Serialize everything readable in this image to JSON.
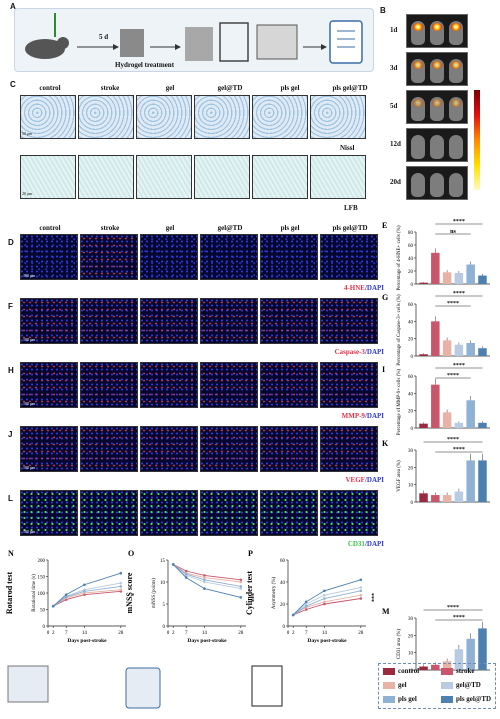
{
  "panel_letters": {
    "A": "A",
    "B": "B",
    "C": "C",
    "D": "D",
    "E": "E",
    "F": "F",
    "G": "G",
    "H": "H",
    "I": "I",
    "J": "J",
    "K": "K",
    "L": "L",
    "M": "M",
    "N": "N",
    "O": "O",
    "P": "P"
  },
  "panelA": {
    "day_label": "5 d",
    "treatment_label": "Hydrogel treatment"
  },
  "panelB": {
    "days": [
      "1d",
      "3d",
      "5d",
      "12d",
      "20d"
    ]
  },
  "groups": [
    "control",
    "stroke",
    "gel",
    "gel@TD",
    "pls gel",
    "pls gel@TD"
  ],
  "panelC": {
    "stain1": "Nissl",
    "stain2": "LFB",
    "scale1": "50 μm",
    "scale2": "20 μm"
  },
  "fluo_rows": [
    {
      "letter": "D",
      "marker": "4-HNE",
      "dapi": "/DAPI",
      "tint": "red",
      "scale": "100 μm"
    },
    {
      "letter": "F",
      "marker": "Caspase-3",
      "dapi": "/DAPI",
      "tint": "red",
      "scale": "100 μm"
    },
    {
      "letter": "H",
      "marker": "MMP-9",
      "dapi": "/DAPI",
      "tint": "red",
      "scale": "100 μm"
    },
    {
      "letter": "J",
      "marker": "VEGF",
      "dapi": "/DAPI",
      "tint": "red",
      "scale": "100 μm"
    },
    {
      "letter": "L",
      "marker": "CD31",
      "dapi": "/DAPI",
      "tint": "green",
      "scale": "100 μm"
    }
  ],
  "colors": {
    "control": "#9c2a3f",
    "stroke": "#c9566a",
    "gel": "#e8b2a6",
    "gel@TD": "#b9cbe0",
    "pls gel": "#8fb1d4",
    "pls gel@TD": "#4c80ae"
  },
  "sig": "****",
  "ns": "ns",
  "legend": [
    "control",
    "stroke",
    "gel",
    "gel@TD",
    "pls gel",
    "pls gel@TD"
  ],
  "chart_data": [
    {
      "type": "bar",
      "panel": "E",
      "categories": [
        "control",
        "stroke",
        "gel",
        "gel@TD",
        "pls gel",
        "pls gel@TD"
      ],
      "values": [
        2,
        48,
        18,
        17,
        30,
        13
      ],
      "ylabel": "Percentage of 4-HNE+ cells (%)",
      "ylim": [
        0,
        80
      ],
      "yticks": [
        0,
        20,
        40,
        60,
        80
      ],
      "annotations": [
        "****",
        "ns"
      ]
    },
    {
      "type": "bar",
      "panel": "G",
      "categories": [
        "control",
        "stroke",
        "gel",
        "gel@TD",
        "pls gel",
        "pls gel@TD"
      ],
      "values": [
        2,
        40,
        18,
        13,
        15,
        9
      ],
      "ylabel": "Percentage of Caspase-3+ cells (%)",
      "ylim": [
        0,
        60
      ],
      "yticks": [
        0,
        20,
        40,
        60
      ],
      "annotations": [
        "****",
        "****"
      ]
    },
    {
      "type": "bar",
      "panel": "I",
      "categories": [
        "control",
        "stroke",
        "gel",
        "gel@TD",
        "pls gel",
        "pls gel@TD"
      ],
      "values": [
        5,
        50,
        18,
        6,
        32,
        6
      ],
      "ylabel": "Percentage of MMP-9+ cells (%)",
      "ylim": [
        0,
        60
      ],
      "yticks": [
        0,
        20,
        40,
        60
      ],
      "annotations": [
        "****",
        "****"
      ]
    },
    {
      "type": "bar",
      "panel": "K",
      "categories": [
        "control",
        "stroke",
        "gel",
        "gel@TD",
        "pls gel",
        "pls gel@TD"
      ],
      "values": [
        5,
        4,
        4,
        6,
        24,
        24
      ],
      "ylabel": "VEGF area (%)",
      "ylim": [
        0,
        30
      ],
      "yticks": [
        0,
        10,
        20,
        30
      ],
      "annotations": [
        "****",
        "****"
      ]
    },
    {
      "type": "bar",
      "panel": "M",
      "categories": [
        "control",
        "stroke",
        "gel",
        "gel@TD",
        "pls gel",
        "pls gel@TD"
      ],
      "values": [
        2,
        3,
        5,
        12,
        18,
        24
      ],
      "ylabel": "CD31 area (%)",
      "ylim": [
        0,
        30
      ],
      "yticks": [
        0,
        10,
        20,
        30
      ],
      "annotations": [
        "****",
        "****"
      ]
    },
    {
      "type": "line",
      "panel": "N",
      "title": "Rotarod test",
      "x": [
        2,
        7,
        14,
        28
      ],
      "xticks": [
        "0",
        "2",
        "7",
        "14",
        "28"
      ],
      "xlabel": "Days post-stroke",
      "ylabel": "Rotational time (s)",
      "ylim": [
        0,
        200
      ],
      "yticks": [
        0,
        50,
        100,
        150,
        200
      ],
      "series": [
        {
          "name": "stroke",
          "values": [
            60,
            80,
            95,
            105
          ]
        },
        {
          "name": "gel",
          "values": [
            60,
            85,
            100,
            110
          ]
        },
        {
          "name": "gel@TD",
          "values": [
            60,
            90,
            110,
            130
          ]
        },
        {
          "name": "pls gel",
          "values": [
            60,
            88,
            105,
            120
          ]
        },
        {
          "name": "pls gel@TD",
          "values": [
            60,
            95,
            125,
            160
          ]
        }
      ],
      "side_label": "*"
    },
    {
      "type": "line",
      "panel": "O",
      "title": "mNSS score",
      "x": [
        2,
        7,
        14,
        28
      ],
      "xticks": [
        "0",
        "2",
        "7",
        "14",
        "28"
      ],
      "xlabel": "Days post-stroke",
      "ylabel": "mNSS (points)",
      "ylim": [
        0,
        15
      ],
      "yticks": [
        0,
        5,
        10,
        15
      ],
      "series": [
        {
          "name": "stroke",
          "values": [
            14,
            12.5,
            11.5,
            10.5
          ]
        },
        {
          "name": "gel",
          "values": [
            14,
            12,
            11,
            10
          ]
        },
        {
          "name": "gel@TD",
          "values": [
            14,
            11.5,
            10,
            8.5
          ]
        },
        {
          "name": "pls gel",
          "values": [
            14,
            11.8,
            10.5,
            9
          ]
        },
        {
          "name": "pls gel@TD",
          "values": [
            14,
            11,
            8.5,
            6.5
          ]
        }
      ],
      "side_label": "***"
    },
    {
      "type": "line",
      "panel": "P",
      "title": "Cylinder test",
      "x": [
        2,
        7,
        14,
        28
      ],
      "xticks": [
        "0",
        "2",
        "7",
        "14",
        "28"
      ],
      "xlabel": "Days post-stroke",
      "ylabel": "Asymmetry (%)",
      "ylim": [
        0,
        60
      ],
      "yticks": [
        0,
        20,
        40,
        60
      ],
      "series": [
        {
          "name": "stroke",
          "values": [
            10,
            15,
            20,
            25
          ]
        },
        {
          "name": "gel",
          "values": [
            10,
            17,
            22,
            28
          ]
        },
        {
          "name": "gel@TD",
          "values": [
            10,
            20,
            28,
            35
          ]
        },
        {
          "name": "pls gel",
          "values": [
            10,
            18,
            25,
            32
          ]
        },
        {
          "name": "pls gel@TD",
          "values": [
            10,
            22,
            32,
            42
          ]
        }
      ],
      "side_label": "***"
    }
  ]
}
